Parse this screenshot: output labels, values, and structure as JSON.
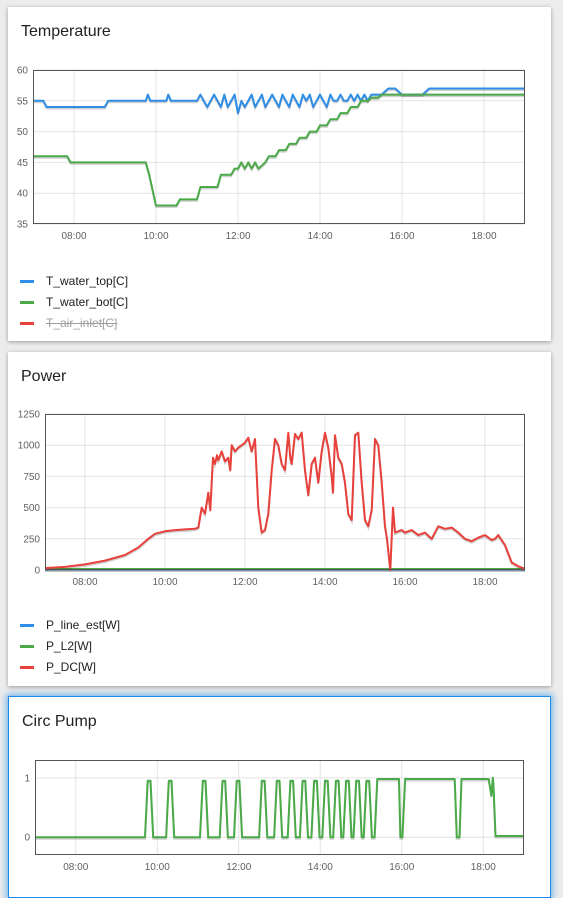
{
  "panels": [
    {
      "title": "Temperature",
      "legend": [
        {
          "label": "T_water_top[C]",
          "color": "#2e8de6",
          "hidden": false
        },
        {
          "label": "T_water_bot[C]",
          "color": "#4aaa48",
          "hidden": false
        },
        {
          "label": "T_air_inlet[C]",
          "color": "#e8413b",
          "hidden": true
        }
      ],
      "chart_data": {
        "type": "line",
        "xlim": [
          "07:00",
          "19:00"
        ],
        "x_ticks": [
          "08:00",
          "10:00",
          "12:00",
          "14:00",
          "16:00",
          "18:00"
        ],
        "ylim": [
          35,
          60
        ],
        "y_ticks": [
          "35",
          "40",
          "45",
          "50",
          "55",
          "60"
        ],
        "grid": true,
        "legend_position": "bottom-left",
        "series": [
          {
            "name": "T_water_top[C]",
            "color": "#2e8de6",
            "x": [
              "07:00",
              "07:15",
              "07:20",
              "08:45",
              "08:50",
              "09:45",
              "09:48",
              "09:52",
              "10:15",
              "10:18",
              "10:22",
              "10:40",
              "11:00",
              "11:05",
              "11:10",
              "11:15",
              "11:20",
              "11:25",
              "11:30",
              "11:35",
              "11:40",
              "11:45",
              "11:50",
              "11:55",
              "12:00",
              "12:05",
              "12:10",
              "12:15",
              "12:20",
              "12:25",
              "12:30",
              "12:35",
              "12:40",
              "12:45",
              "12:50",
              "12:55",
              "13:00",
              "13:05",
              "13:10",
              "13:15",
              "13:20",
              "13:25",
              "13:30",
              "13:35",
              "13:40",
              "13:45",
              "13:50",
              "13:55",
              "14:00",
              "14:05",
              "14:10",
              "14:15",
              "14:20",
              "14:25",
              "14:30",
              "14:35",
              "14:40",
              "14:45",
              "14:50",
              "14:55",
              "15:00",
              "15:05",
              "15:10",
              "15:15",
              "15:20",
              "15:30",
              "15:40",
              "15:50",
              "16:00",
              "16:30",
              "16:40",
              "19:00"
            ],
            "y": [
              55,
              55,
              54,
              54,
              55,
              55,
              56,
              55,
              55,
              56,
              55,
              55,
              55,
              56,
              55,
              54,
              55,
              56,
              55,
              54,
              56,
              54,
              55,
              56,
              53,
              55,
              54,
              55,
              56,
              54,
              55,
              56,
              54,
              55,
              56,
              55,
              54,
              56,
              55,
              54,
              56,
              55,
              54,
              56,
              55,
              56,
              54,
              55,
              56,
              55,
              54,
              56,
              55,
              55,
              56,
              55,
              55,
              56,
              55,
              56,
              55,
              56,
              55,
              56,
              56,
              56,
              57,
              57,
              56,
              56,
              57,
              57
            ]
          },
          {
            "name": "T_water_bot[C]",
            "color": "#4aaa48",
            "x": [
              "07:00",
              "07:50",
              "07:55",
              "09:45",
              "09:50",
              "10:00",
              "10:30",
              "10:35",
              "11:00",
              "11:05",
              "11:30",
              "11:35",
              "11:50",
              "11:55",
              "12:00",
              "12:05",
              "12:10",
              "12:15",
              "12:20",
              "12:25",
              "12:30",
              "12:40",
              "12:45",
              "12:55",
              "13:00",
              "13:10",
              "13:15",
              "13:25",
              "13:30",
              "13:40",
              "13:45",
              "13:55",
              "14:00",
              "14:10",
              "14:15",
              "14:25",
              "14:30",
              "14:40",
              "14:45",
              "14:55",
              "15:00",
              "15:10",
              "15:15",
              "15:25",
              "15:30",
              "16:00",
              "16:40",
              "19:00"
            ],
            "y": [
              46,
              46,
              45,
              45,
              43,
              38,
              38,
              39,
              39,
              41,
              41,
              43,
              43,
              44,
              44,
              45,
              44,
              45,
              44,
              45,
              44,
              45,
              46,
              46,
              47,
              47,
              48,
              48,
              49,
              49,
              50,
              50,
              51,
              51,
              52,
              52,
              53,
              53,
              54,
              54,
              55,
              55,
              55.5,
              55.5,
              56,
              56,
              56,
              56
            ]
          }
        ]
      }
    },
    {
      "title": "Power",
      "legend": [
        {
          "label": "P_line_est[W]",
          "color": "#2e8de6",
          "hidden": false
        },
        {
          "label": "P_L2[W]",
          "color": "#4aaa48",
          "hidden": false
        },
        {
          "label": "P_DC[W]",
          "color": "#e8413b",
          "hidden": false
        }
      ],
      "chart_data": {
        "type": "line",
        "xlim": [
          "07:00",
          "19:00"
        ],
        "x_ticks": [
          "08:00",
          "10:00",
          "12:00",
          "14:00",
          "16:00",
          "18:00"
        ],
        "ylim": [
          0,
          1250
        ],
        "y_ticks": [
          "0",
          "250",
          "500",
          "750",
          "1000",
          "1250"
        ],
        "grid": true,
        "legend_position": "bottom-left",
        "series": [
          {
            "name": "P_line_est[W]",
            "color": "#2e8de6",
            "x": [
              "07:00",
              "19:00"
            ],
            "y": [
              5,
              5
            ]
          },
          {
            "name": "P_L2[W]",
            "color": "#4aaa48",
            "x": [
              "07:00",
              "19:00"
            ],
            "y": [
              8,
              8
            ]
          },
          {
            "name": "P_DC[W]",
            "color": "#e8413b",
            "x": [
              "07:00",
              "07:30",
              "08:00",
              "08:30",
              "09:00",
              "09:20",
              "09:35",
              "09:45",
              "10:00",
              "10:15",
              "10:30",
              "10:45",
              "10:50",
              "10:55",
              "11:00",
              "11:05",
              "11:08",
              "11:10",
              "11:12",
              "11:15",
              "11:18",
              "11:20",
              "11:25",
              "11:30",
              "11:35",
              "11:38",
              "11:40",
              "11:45",
              "11:50",
              "11:55",
              "12:00",
              "12:05",
              "12:10",
              "12:15",
              "12:20",
              "12:25",
              "12:30",
              "12:35",
              "12:40",
              "12:45",
              "12:50",
              "12:55",
              "13:00",
              "13:05",
              "13:08",
              "13:10",
              "13:15",
              "13:20",
              "13:25",
              "13:30",
              "13:35",
              "13:40",
              "13:45",
              "13:50",
              "13:55",
              "14:00",
              "14:05",
              "14:10",
              "14:12",
              "14:15",
              "14:20",
              "14:25",
              "14:30",
              "14:35",
              "14:40",
              "14:45",
              "14:50",
              "14:55",
              "15:00",
              "15:05",
              "15:10",
              "15:15",
              "15:20",
              "15:25",
              "15:30",
              "15:33",
              "15:38",
              "15:42",
              "15:45",
              "15:50",
              "15:55",
              "16:00",
              "16:10",
              "16:20",
              "16:30",
              "16:40",
              "16:50",
              "17:00",
              "17:10",
              "17:20",
              "17:30",
              "17:40",
              "17:50",
              "18:00",
              "18:10",
              "18:15",
              "18:20",
              "18:30",
              "18:40",
              "18:50",
              "19:00"
            ],
            "y": [
              15,
              25,
              45,
              75,
              120,
              180,
              250,
              290,
              310,
              320,
              325,
              330,
              340,
              500,
              450,
              620,
              480,
              700,
              900,
              850,
              920,
              880,
              950,
              870,
              900,
              800,
              1000,
              950,
              980,
              1000,
              1020,
              1060,
              950,
              1050,
              500,
              300,
              320,
              450,
              800,
              1050,
              1000,
              850,
              800,
              1100,
              900,
              850,
              1090,
              1050,
              1100,
              800,
              600,
              850,
              900,
              700,
              950,
              1100,
              980,
              750,
              620,
              1080,
              900,
              850,
              700,
              450,
              400,
              1080,
              1100,
              700,
              400,
              350,
              480,
              1050,
              1000,
              700,
              350,
              250,
              0,
              500,
              300,
              310,
              320,
              300,
              320,
              280,
              300,
              250,
              350,
              330,
              340,
              300,
              250,
              230,
              260,
              280,
              240,
              250,
              280,
              200,
              60,
              30,
              10
            ]
          }
        ]
      }
    },
    {
      "title": "Circ Pump",
      "selected": true,
      "chart_data": {
        "type": "line",
        "xlim": [
          "07:00",
          "19:00"
        ],
        "x_ticks": [
          "08:00",
          "10:00",
          "12:00",
          "14:00",
          "16:00",
          "18:00"
        ],
        "ylim": [
          -0.3,
          1.3
        ],
        "y_ticks": [
          "0",
          "1"
        ],
        "grid": true,
        "series": [
          {
            "name": "",
            "color": "#4aaa48",
            "x": [
              "07:00",
              "09:42",
              "09:46",
              "09:48",
              "09:50",
              "09:54",
              "10:13",
              "10:17",
              "10:19",
              "10:21",
              "10:25",
              "11:03",
              "11:07",
              "11:09",
              "11:11",
              "11:15",
              "11:32",
              "11:36",
              "11:38",
              "11:40",
              "11:44",
              "11:53",
              "11:57",
              "11:59",
              "12:01",
              "12:05",
              "12:30",
              "12:34",
              "12:36",
              "12:38",
              "12:42",
              "12:52",
              "12:56",
              "12:58",
              "13:00",
              "13:04",
              "13:12",
              "13:16",
              "13:18",
              "13:20",
              "13:24",
              "13:30",
              "13:34",
              "13:36",
              "13:38",
              "13:42",
              "13:47",
              "13:51",
              "13:53",
              "13:55",
              "13:59",
              "14:03",
              "14:07",
              "14:09",
              "14:11",
              "14:15",
              "14:19",
              "14:23",
              "14:25",
              "14:27",
              "14:31",
              "14:34",
              "14:38",
              "14:40",
              "14:42",
              "14:46",
              "14:49",
              "14:53",
              "14:55",
              "14:57",
              "15:01",
              "15:04",
              "15:08",
              "15:10",
              "15:12",
              "15:16",
              "15:20",
              "15:24",
              "15:56",
              "15:58",
              "16:01",
              "16:05",
              "17:18",
              "17:21",
              "17:25",
              "17:28",
              "18:08",
              "18:12",
              "18:14",
              "18:15",
              "18:18",
              "18:23",
              "19:00"
            ],
            "y": [
              0,
              0,
              0.95,
              0.95,
              0.95,
              0,
              0,
              0.95,
              0.95,
              0.95,
              0,
              0,
              0.95,
              0.95,
              0.95,
              0,
              0,
              0.95,
              0.95,
              0.95,
              0,
              0,
              0.95,
              0.95,
              0.95,
              0,
              0,
              0.95,
              0.95,
              0.95,
              0,
              0,
              0.95,
              0.95,
              0.95,
              0,
              0,
              0.95,
              0.95,
              0.95,
              0,
              0,
              0.95,
              0.95,
              0.95,
              0,
              0,
              0.95,
              0.95,
              0.95,
              0,
              0,
              0.95,
              0.95,
              0.95,
              0,
              0,
              0.95,
              0.95,
              0.95,
              0,
              0,
              0.95,
              0.95,
              0.95,
              0,
              0,
              0.95,
              0.95,
              0.95,
              0,
              0,
              0.95,
              0.95,
              0.95,
              0,
              0,
              0.98,
              0.98,
              0,
              0,
              0.98,
              0.98,
              0,
              0,
              0.98,
              0.98,
              0.7,
              1.0,
              0.9,
              0.02,
              0.02,
              0.02
            ]
          }
        ]
      }
    }
  ]
}
